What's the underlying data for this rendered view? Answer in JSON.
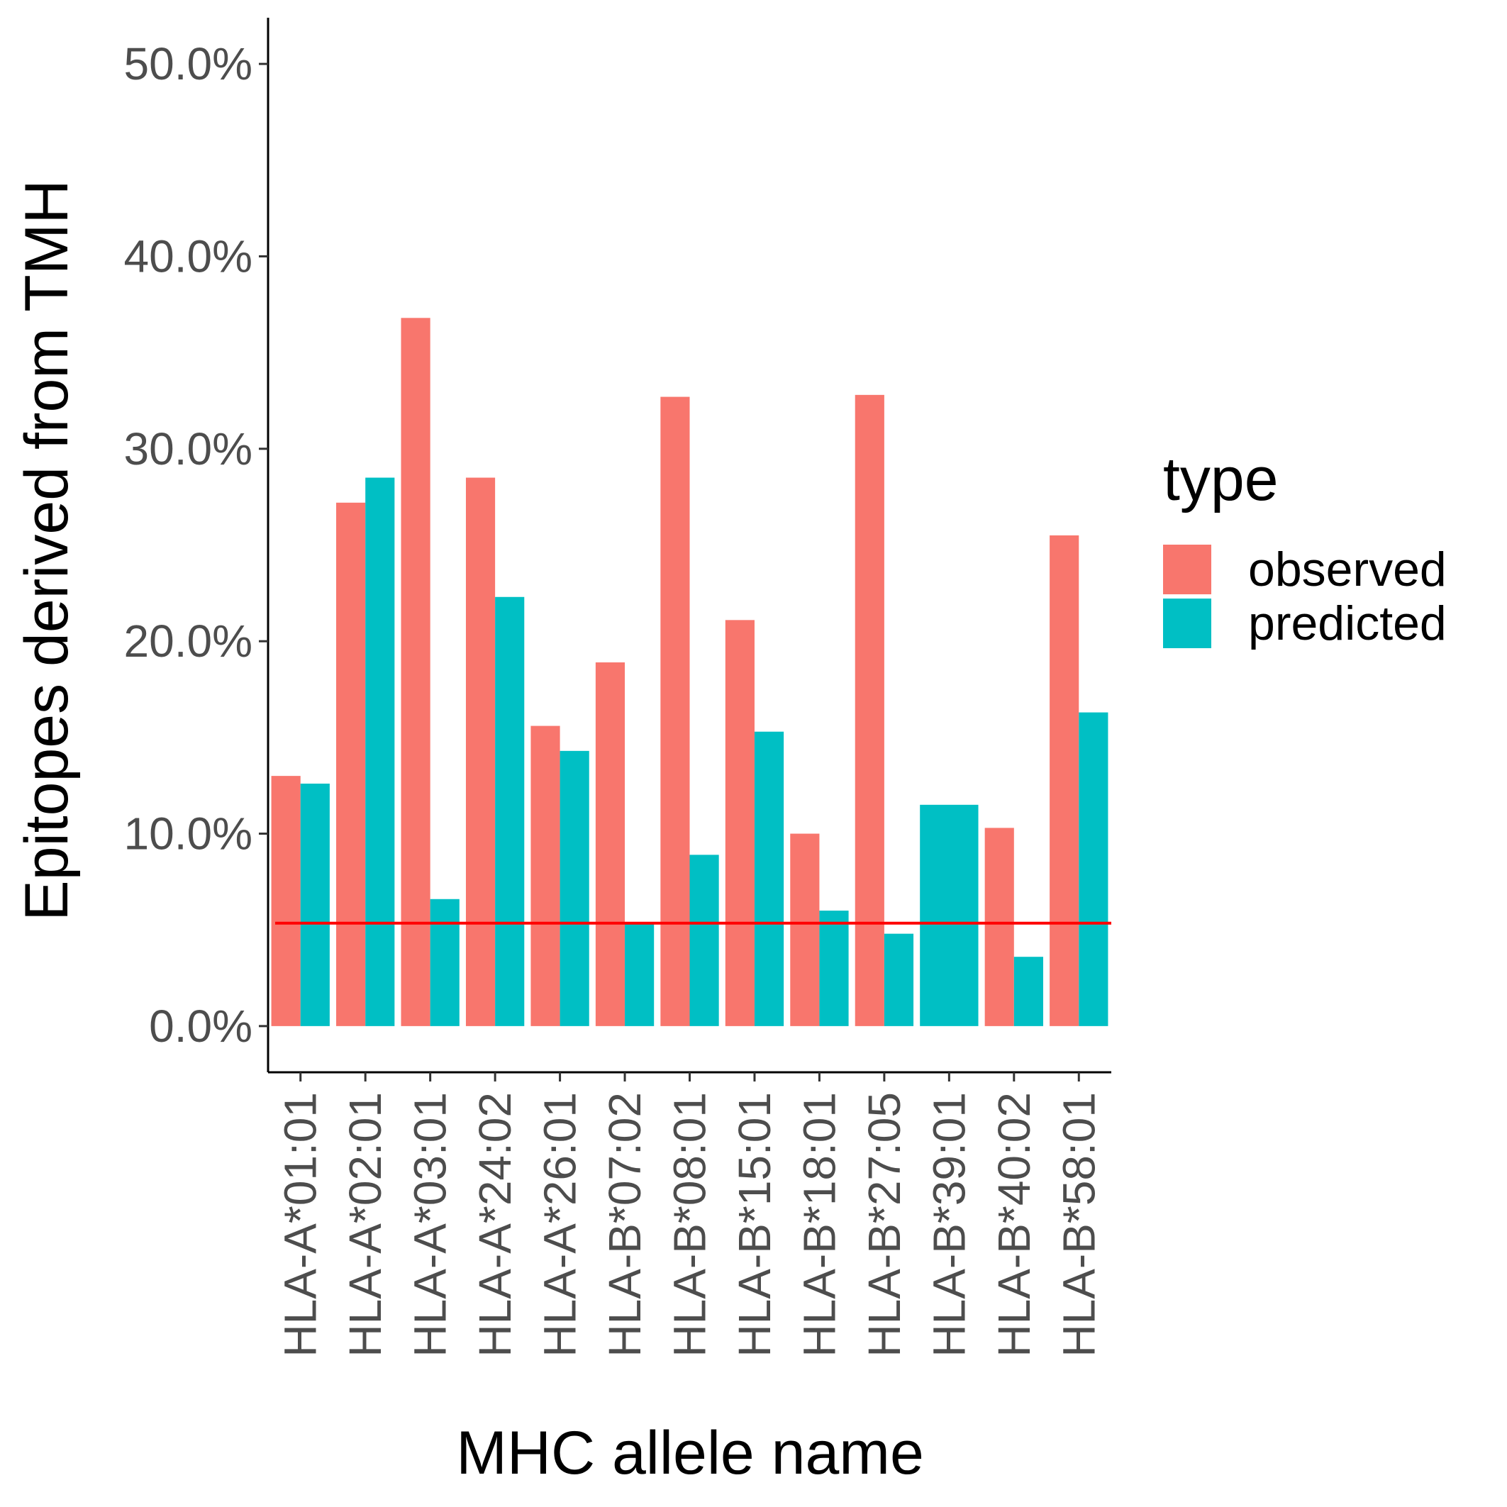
{
  "chart_data": {
    "type": "bar",
    "title": "",
    "xlabel": "MHC allele name",
    "ylabel": "Epitopes derived from TMH",
    "categories": [
      "HLA-A*01:01",
      "HLA-A*02:01",
      "HLA-A*03:01",
      "HLA-A*24:02",
      "HLA-A*26:01",
      "HLA-B*07:02",
      "HLA-B*08:01",
      "HLA-B*15:01",
      "HLA-B*18:01",
      "HLA-B*27:05",
      "HLA-B*39:01",
      "HLA-B*40:02",
      "HLA-B*58:01"
    ],
    "series": [
      {
        "name": "observed",
        "color": "#F8766D",
        "values": [
          13.0,
          27.2,
          36.8,
          28.5,
          15.6,
          18.9,
          32.7,
          21.1,
          10.0,
          32.8,
          null,
          10.3,
          25.5
        ]
      },
      {
        "name": "predicted",
        "color": "#00BFC4",
        "values": [
          12.6,
          28.5,
          6.6,
          22.3,
          14.3,
          5.3,
          8.9,
          15.3,
          6.0,
          4.8,
          11.5,
          3.6,
          16.3
        ]
      }
    ],
    "reference_line": {
      "value": 5.35,
      "color": "#FF0000"
    },
    "ylim": [
      -2.4,
      52.4
    ],
    "yticks": [
      0,
      10,
      20,
      30,
      40,
      50
    ],
    "ytick_labels": [
      "0.0%",
      "10.0%",
      "20.0%",
      "30.0%",
      "40.0%",
      "50.0%"
    ],
    "legend": {
      "title": "type",
      "position": "right"
    },
    "grid": false
  }
}
